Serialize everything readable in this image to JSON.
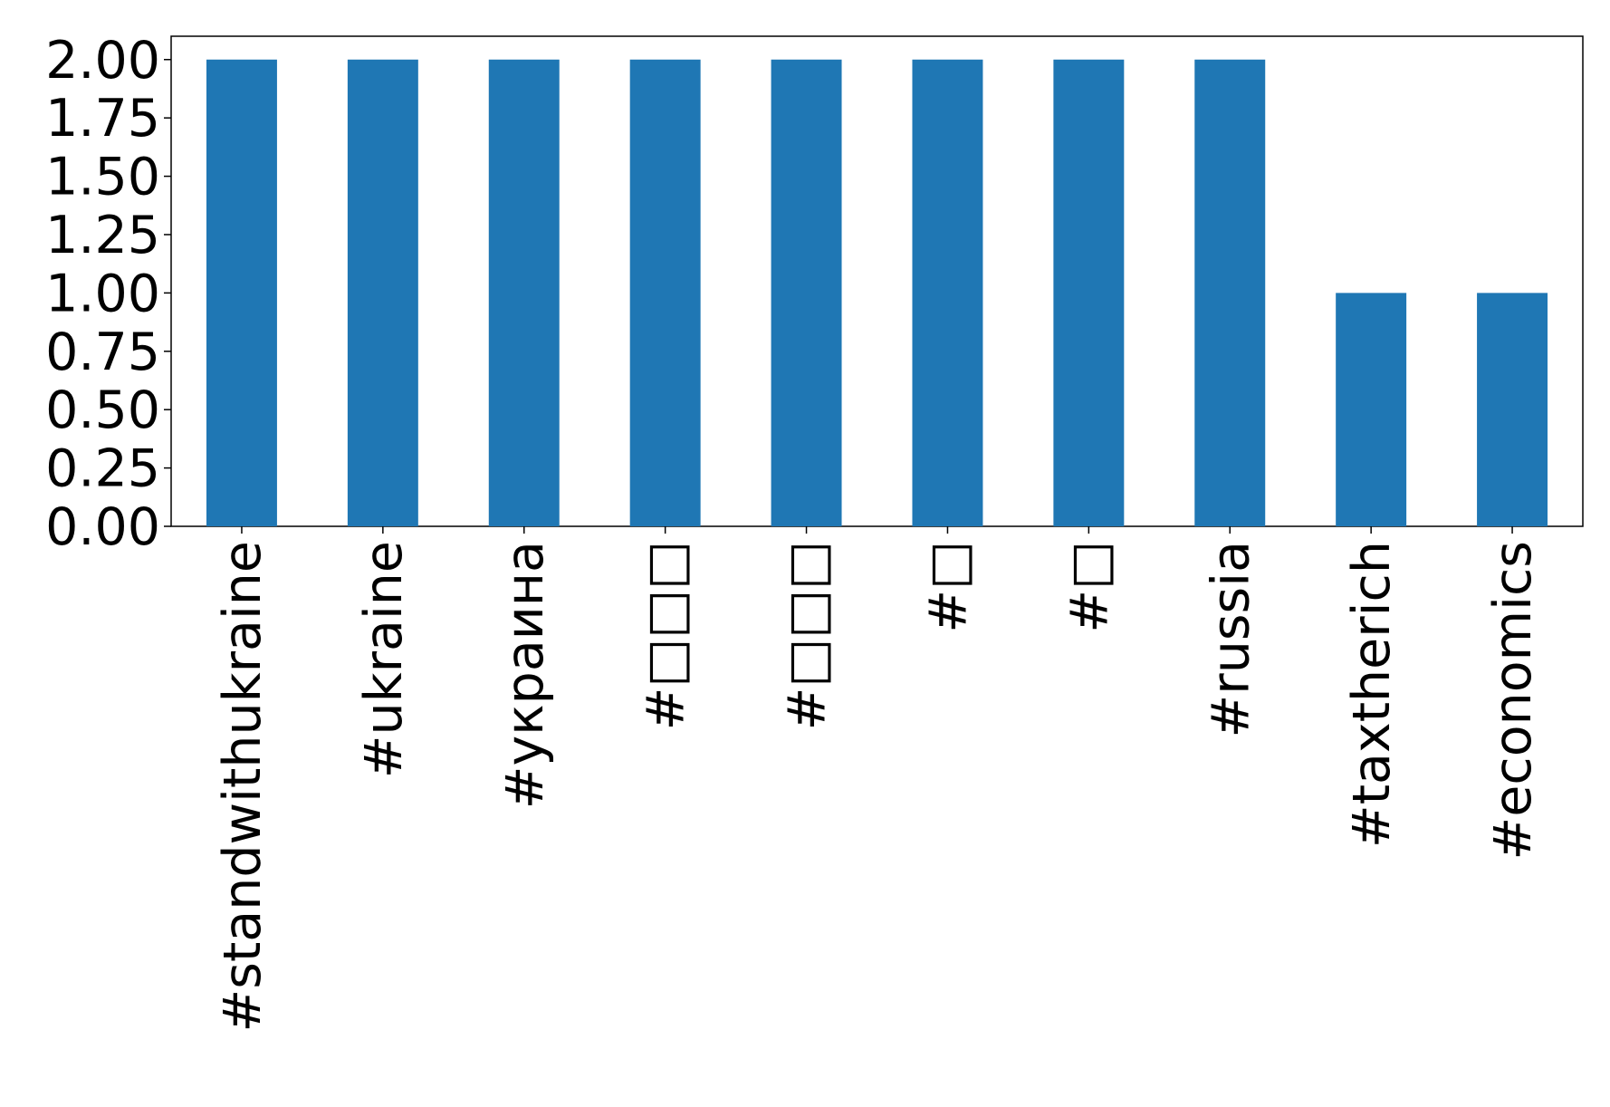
{
  "chart_data": {
    "type": "bar",
    "categories": [
      "#standwithukraine",
      "#ukraine",
      "#украина",
      "#□□□",
      "#□□□",
      "#□",
      "#□",
      "#russia",
      "#taxtherich",
      "#economics"
    ],
    "values": [
      2,
      2,
      2,
      2,
      2,
      2,
      2,
      2,
      1,
      1
    ],
    "color": "#1f77b4",
    "ylim": [
      0,
      2.1
    ],
    "yticks": [
      {
        "value": 0,
        "label": "0.00"
      },
      {
        "value": 0.25,
        "label": "0.25"
      },
      {
        "value": 0.5,
        "label": "0.50"
      },
      {
        "value": 0.75,
        "label": "0.75"
      },
      {
        "value": 1,
        "label": "1.00"
      },
      {
        "value": 1.25,
        "label": "1.25"
      },
      {
        "value": 1.5,
        "label": "1.50"
      },
      {
        "value": 1.75,
        "label": "1.75"
      },
      {
        "value": 2,
        "label": "2.00"
      }
    ],
    "grid": false
  }
}
